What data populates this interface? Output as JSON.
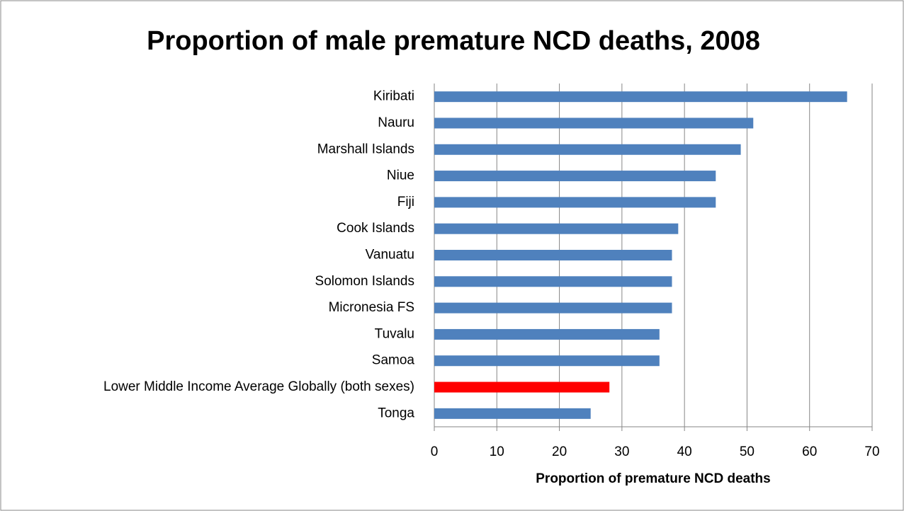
{
  "chart_data": {
    "type": "barh",
    "title": "Proportion of male premature NCD deaths, 2008",
    "x_label": "Proportion of premature NCD deaths",
    "categories": [
      "Kiribati",
      "Nauru",
      "Marshall Islands",
      "Niue",
      "Fiji",
      "Cook Islands",
      "Vanuatu",
      "Solomon Islands",
      "Micronesia FS",
      "Tuvalu",
      "Samoa",
      "Lower Middle Income Average Globally (both sexes)",
      "Tonga"
    ],
    "values": [
      66,
      51,
      49,
      45,
      45,
      39,
      38,
      38,
      38,
      36,
      36,
      28,
      25
    ],
    "colors": [
      "#4f81bd",
      "#4f81bd",
      "#4f81bd",
      "#4f81bd",
      "#4f81bd",
      "#4f81bd",
      "#4f81bd",
      "#4f81bd",
      "#4f81bd",
      "#4f81bd",
      "#4f81bd",
      "#ff0000",
      "#4f81bd"
    ],
    "xlim": [
      0,
      70
    ],
    "xticks": [
      0,
      10,
      20,
      30,
      40,
      50,
      60,
      70
    ],
    "grid": true
  }
}
